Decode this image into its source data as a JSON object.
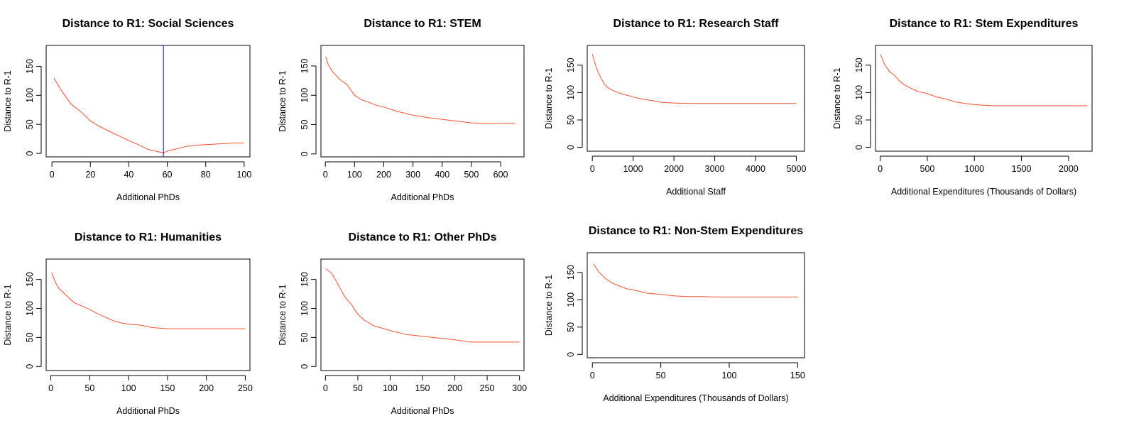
{
  "figure": {
    "layout": "2x4 grid of line plots",
    "line_color": "#f05030",
    "annotation_line_color": "#0000ff"
  },
  "chart_data": [
    {
      "type": "line",
      "title": "Distance to R1: Social Sciences",
      "xlabel": "Additional PhDs",
      "ylabel": "Distance to R-1",
      "xlim": [
        -3,
        103
      ],
      "ylim": [
        -6,
        186
      ],
      "xticks": [
        0,
        20,
        40,
        60,
        80,
        100
      ],
      "yticks": [
        0,
        50,
        100,
        150
      ],
      "vline": 58,
      "series": [
        {
          "x": [
            1,
            5,
            10,
            15,
            20,
            25,
            30,
            35,
            40,
            45,
            50,
            55,
            58,
            60,
            65,
            70,
            75,
            80,
            85,
            90,
            95,
            100
          ],
          "y": [
            130,
            108,
            85,
            72,
            56,
            46,
            38,
            30,
            22,
            15,
            7,
            3,
            1,
            4,
            8,
            12,
            14,
            15,
            16,
            17,
            18,
            18
          ]
        }
      ]
    },
    {
      "type": "line",
      "title": "Distance to R1: STEM",
      "xlabel": "Additional PhDs",
      "ylabel": "Distance to R-1",
      "xlim": [
        -15,
        680
      ],
      "ylim": [
        -5,
        185
      ],
      "xticks": [
        0,
        100,
        200,
        300,
        400,
        500,
        600
      ],
      "yticks": [
        0,
        50,
        100,
        150
      ],
      "series": [
        {
          "x": [
            1,
            10,
            25,
            50,
            75,
            100,
            125,
            150,
            175,
            200,
            250,
            300,
            350,
            400,
            450,
            500,
            550,
            600,
            650
          ],
          "y": [
            166,
            152,
            140,
            127,
            118,
            100,
            92,
            88,
            83,
            80,
            72,
            66,
            62,
            59,
            56,
            53,
            52,
            52,
            52
          ]
        }
      ]
    },
    {
      "type": "line",
      "title": "Distance to R1: Research Staff",
      "xlabel": "Additional Staff",
      "ylabel": "Distance to R-1",
      "xlim": [
        -125,
        5200
      ],
      "ylim": [
        -7,
        186
      ],
      "xticks": [
        0,
        1000,
        2000,
        3000,
        4000,
        5000
      ],
      "yticks": [
        0,
        50,
        100,
        150
      ],
      "series": [
        {
          "x": [
            1,
            100,
            200,
            300,
            400,
            500,
            700,
            900,
            1100,
            1300,
            1500,
            1700,
            2000,
            2500,
            3000,
            4000,
            5000
          ],
          "y": [
            170,
            145,
            128,
            115,
            108,
            104,
            98,
            94,
            90,
            87,
            85,
            82,
            81,
            80,
            80,
            80,
            80
          ]
        }
      ]
    },
    {
      "type": "line",
      "title": "Distance to R1: Stem Expenditures",
      "xlabel": "Additional Expenditures (Thousands of Dollars)",
      "ylabel": "Distance to R-1",
      "xlim": [
        -50,
        2250
      ],
      "ylim": [
        -7,
        186
      ],
      "xticks": [
        0,
        500,
        1000,
        1500,
        2000
      ],
      "yticks": [
        0,
        50,
        100,
        150
      ],
      "series": [
        {
          "x": [
            1,
            50,
            100,
            150,
            200,
            250,
            300,
            400,
            500,
            600,
            700,
            800,
            900,
            1000,
            1100,
            1200,
            1500,
            2000,
            2200
          ],
          "y": [
            170,
            150,
            138,
            132,
            122,
            115,
            110,
            102,
            98,
            92,
            88,
            83,
            80,
            78,
            77,
            76,
            76,
            76,
            76
          ]
        }
      ]
    },
    {
      "type": "line",
      "title": "Distance to R1: Humanities",
      "xlabel": "Additional PhDs",
      "ylabel": "Distance to R-1",
      "xlim": [
        -6,
        256
      ],
      "ylim": [
        -7,
        185
      ],
      "xticks": [
        0,
        50,
        100,
        150,
        200,
        250
      ],
      "yticks": [
        0,
        50,
        100,
        150
      ],
      "series": [
        {
          "x": [
            1,
            5,
            10,
            20,
            30,
            40,
            50,
            60,
            70,
            80,
            90,
            100,
            110,
            120,
            130,
            140,
            150,
            200,
            250
          ],
          "y": [
            162,
            148,
            135,
            122,
            110,
            104,
            98,
            91,
            85,
            79,
            75,
            73,
            72,
            70,
            67,
            66,
            65,
            65,
            65
          ]
        }
      ]
    },
    {
      "type": "line",
      "title": "Distance to R1: Other PhDs",
      "xlabel": "Additional PhDs",
      "ylabel": "Distance to R-1",
      "xlim": [
        -7,
        307
      ],
      "ylim": [
        -7,
        185
      ],
      "xticks": [
        0,
        50,
        100,
        150,
        200,
        250,
        300
      ],
      "yticks": [
        0,
        50,
        100,
        150
      ],
      "series": [
        {
          "x": [
            1,
            10,
            20,
            30,
            40,
            50,
            60,
            75,
            100,
            125,
            150,
            175,
            200,
            225,
            250,
            275,
            300
          ],
          "y": [
            168,
            160,
            140,
            120,
            107,
            90,
            80,
            70,
            62,
            55,
            52,
            49,
            46,
            42,
            42,
            42,
            42
          ]
        }
      ]
    },
    {
      "type": "line",
      "title": "Distance to R1: Non-Stem Expenditures",
      "xlabel": "Additional Expenditures (Thousands of Dollars)",
      "ylabel": "Distance to R-1",
      "xlim": [
        -3.75,
        155
      ],
      "ylim": [
        -6,
        186
      ],
      "xticks": [
        0,
        50,
        100,
        150
      ],
      "yticks": [
        0,
        50,
        100,
        150
      ],
      "series": [
        {
          "x": [
            1,
            5,
            10,
            15,
            20,
            25,
            30,
            40,
            50,
            60,
            70,
            80,
            90,
            100,
            125,
            150
          ],
          "y": [
            165,
            150,
            138,
            130,
            125,
            120,
            118,
            112,
            110,
            107,
            106,
            106,
            105,
            105,
            105,
            105
          ]
        }
      ]
    }
  ]
}
